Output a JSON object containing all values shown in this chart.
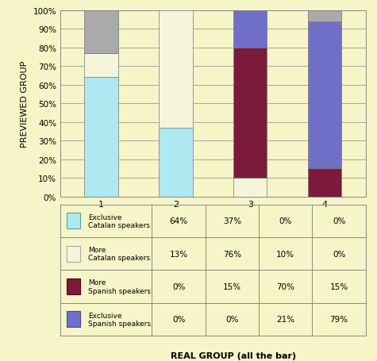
{
  "title": "",
  "ylabel": "PREVIEWED GROUP",
  "xlabel": "REAL GROUP (all the bar)",
  "categories": [
    "1",
    "2",
    "3",
    "4"
  ],
  "series": [
    {
      "label": "Exclusive\nCatalan speakers",
      "values": [
        64,
        37,
        0,
        0
      ],
      "color": "#aee8f0"
    },
    {
      "label": "More\nCatalan speakers",
      "values": [
        13,
        76,
        10,
        0
      ],
      "color": "#f5f5dc"
    },
    {
      "label": "More\nSpanish speakers",
      "values": [
        0,
        15,
        70,
        15
      ],
      "color": "#7b1a3c"
    },
    {
      "label": "Exclusive\nSpanish speakers",
      "values": [
        0,
        0,
        21,
        79
      ],
      "color": "#7070c8"
    }
  ],
  "gray_color": "#aaaaaa",
  "background_color": "#f5f5c8",
  "axes_background": "#f5f5c8",
  "grid_color": "#888888",
  "table_values": [
    [
      "64%",
      "37%",
      "0%",
      "0%"
    ],
    [
      "13%",
      "76%",
      "10%",
      "0%"
    ],
    [
      "0%",
      "15%",
      "70%",
      "15%"
    ],
    [
      "0%",
      "0%",
      "21%",
      "79%"
    ]
  ],
  "legend_labels": [
    "Exclusive\nCatalan speakers",
    "More\nCatalan speakers",
    "More\nSpanish speakers",
    "Exclusive\nSpanish speakers"
  ],
  "legend_colors": [
    "#aee8f0",
    "#f5f5dc",
    "#7b1a3c",
    "#7070c8"
  ],
  "legend_edge_colors": [
    "#6699aa",
    "#aaaaaa",
    "#550020",
    "#4444aa"
  ],
  "ylim": [
    0,
    100
  ],
  "yticks": [
    0,
    10,
    20,
    30,
    40,
    50,
    60,
    70,
    80,
    90,
    100
  ]
}
